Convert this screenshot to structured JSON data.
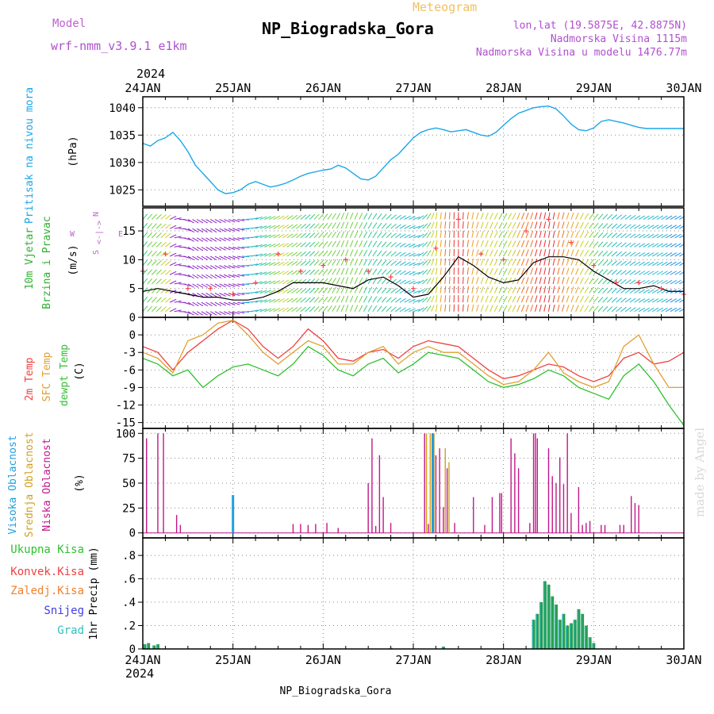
{
  "header": {
    "model_label": "Model",
    "model_value": "wrf-nmm_v3.9.1 e1km",
    "product": "Meteogram",
    "station": "NP_Biogradska_Gora",
    "lonlat": "lon,lat (19.5875E, 42.8875N)",
    "elevation": "Nadmorska Visina 1115m",
    "model_elevation": "Nadmorska Visina u modelu 1476.77m",
    "year": "2024",
    "footer_station": "NP_Biogradska_Gora",
    "credit": "made by Angel"
  },
  "colors": {
    "pressure": "#1aa7e8",
    "temp2m": "#f04040",
    "sfc": "#e0a030",
    "dewpt": "#30c030",
    "low_cloud": "#c0188a",
    "mid_cloud": "#d0a020",
    "high_cloud": "#20a0e0",
    "precip_total": "#2a9a4a",
    "precip_conv": "#f04040",
    "precip_fz": "#f08030",
    "snow": "#4040e0",
    "hail": "#30c0c0",
    "wind_speed": "#000000",
    "gust": "#ff4040"
  },
  "chart_data": [
    {
      "id": "pressure",
      "type": "line",
      "title": "",
      "ylabel": [
        "Pritisak na nivou mora",
        "(hPa)"
      ],
      "x_categories": [
        "24JAN",
        "25JAN",
        "26JAN",
        "27JAN",
        "28JAN",
        "29JAN",
        "30JAN"
      ],
      "xlim_hours": [
        0,
        144
      ],
      "ylim": [
        1022,
        1042
      ],
      "yticks": [
        1025,
        1030,
        1035,
        1040
      ],
      "grid": true,
      "series": [
        {
          "x": [
            0,
            2,
            4,
            6,
            8,
            10,
            12,
            14,
            16,
            18,
            20,
            22,
            24,
            26,
            28,
            30,
            32,
            34,
            36,
            38,
            40,
            42,
            44,
            46,
            48,
            50,
            52,
            54,
            56,
            58,
            60,
            62,
            64,
            66,
            68,
            70,
            72,
            74,
            76,
            78,
            80,
            82,
            84,
            86,
            88,
            90,
            92,
            94,
            96,
            98,
            100,
            102,
            104,
            106,
            108,
            110,
            112,
            114,
            116,
            118,
            120,
            122,
            124,
            126,
            128,
            130,
            132,
            134,
            136,
            138,
            140,
            142,
            144
          ],
          "values": [
            1033.5,
            1033,
            1034,
            1034.5,
            1035.5,
            1034,
            1032,
            1029.5,
            1028,
            1026.5,
            1025,
            1024.3,
            1024.5,
            1025,
            1026,
            1026.5,
            1026,
            1025.5,
            1025.8,
            1026.2,
            1026.8,
            1027.5,
            1028,
            1028.3,
            1028.6,
            1028.8,
            1029.5,
            1029,
            1028,
            1027,
            1026.8,
            1027.5,
            1029,
            1030.5,
            1031.5,
            1033,
            1034.5,
            1035.5,
            1036,
            1036.3,
            1036,
            1035.6,
            1035.8,
            1036,
            1035.5,
            1035,
            1034.8,
            1035.5,
            1036.8,
            1038,
            1039,
            1039.5,
            1040,
            1040.2,
            1040.3,
            1039.8,
            1038.5,
            1037,
            1036,
            1035.8,
            1036.3,
            1037.5,
            1037.8,
            1037.5,
            1037.2,
            1036.8,
            1036.4,
            1036.2,
            1036.2,
            1036.2,
            1036.2,
            1036.2,
            1036.2
          ]
        }
      ]
    },
    {
      "id": "wind",
      "type": "line",
      "title": "",
      "ylabel": [
        "10m Vjetar",
        "Brzina i Pravac",
        "(m/s)"
      ],
      "direction_key": [
        "W",
        "<-|->",
        "E",
        "N",
        "S"
      ],
      "xlim_hours": [
        0,
        144
      ],
      "ylim": [
        0,
        19
      ],
      "yticks": [
        0,
        5,
        10,
        15
      ],
      "grid": true,
      "series": [
        {
          "name": "wind_speed",
          "x": [
            0,
            4,
            8,
            12,
            16,
            20,
            24,
            28,
            32,
            36,
            40,
            44,
            48,
            52,
            56,
            60,
            64,
            68,
            72,
            76,
            80,
            84,
            88,
            92,
            96,
            100,
            104,
            108,
            112,
            116,
            120,
            124,
            128,
            132,
            136,
            140,
            144
          ],
          "values": [
            4.5,
            5,
            4.5,
            4,
            3.5,
            3.5,
            3,
            3,
            3.5,
            4.5,
            6,
            6,
            6,
            5.5,
            5,
            6.5,
            7,
            5.5,
            3.5,
            4,
            7,
            10.5,
            9,
            7,
            6,
            6.5,
            9.5,
            10.5,
            10.5,
            10,
            8,
            6.5,
            5,
            5,
            5.5,
            4.5,
            4.5
          ]
        },
        {
          "name": "gust",
          "x": [
            0,
            6,
            12,
            18,
            24,
            30,
            36,
            42,
            48,
            54,
            60,
            66,
            72,
            78,
            84,
            90,
            96,
            102,
            108,
            114,
            120,
            126,
            132,
            138,
            144
          ],
          "values": [
            8,
            11,
            5,
            5,
            4,
            6,
            11,
            8,
            9,
            10,
            8,
            7,
            5,
            12,
            17,
            11,
            10,
            15,
            17,
            13,
            9,
            6,
            6,
            5,
            4
          ]
        },
        {
          "name": "direction_deg",
          "x": [
            0,
            6,
            12,
            18,
            24,
            30,
            36,
            42,
            48,
            54,
            60,
            66,
            72,
            78,
            84,
            90,
            96,
            102,
            108,
            114,
            120,
            126,
            132,
            138,
            144
          ],
          "values": [
            220,
            230,
            300,
            300,
            290,
            250,
            240,
            230,
            220,
            200,
            210,
            230,
            250,
            190,
            180,
            200,
            210,
            200,
            190,
            200,
            220,
            230,
            240,
            240,
            240
          ]
        }
      ]
    },
    {
      "id": "temperature",
      "type": "line",
      "title": "",
      "ylabel": [
        "2m Temp",
        "SFC Temp",
        "dewpt Temp",
        "(C)"
      ],
      "xlim_hours": [
        0,
        144
      ],
      "ylim": [
        -16,
        3
      ],
      "yticks": [
        0,
        -3,
        -6,
        -9,
        -12,
        -15
      ],
      "grid": true,
      "series": [
        {
          "name": "2m Temp",
          "x": [
            0,
            4,
            8,
            12,
            16,
            20,
            24,
            28,
            32,
            36,
            40,
            44,
            48,
            52,
            56,
            60,
            64,
            68,
            72,
            76,
            80,
            84,
            88,
            92,
            96,
            100,
            104,
            108,
            112,
            116,
            120,
            124,
            128,
            132,
            136,
            140,
            144
          ],
          "values": [
            -2,
            -3,
            -6,
            -3,
            -1,
            1,
            2.5,
            1,
            -2,
            -4,
            -2,
            1,
            -1,
            -4,
            -4.5,
            -3,
            -2.5,
            -4,
            -2,
            -1,
            -1.5,
            -2,
            -4,
            -6,
            -7.5,
            -7,
            -6,
            -5,
            -5.5,
            -7,
            -8,
            -7,
            -4,
            -3,
            -5,
            -4.5,
            -3
          ]
        },
        {
          "name": "SFC Temp",
          "x": [
            0,
            4,
            8,
            12,
            16,
            20,
            24,
            28,
            32,
            36,
            40,
            44,
            48,
            52,
            56,
            60,
            64,
            68,
            72,
            76,
            80,
            84,
            88,
            92,
            96,
            100,
            104,
            108,
            112,
            116,
            120,
            124,
            128,
            132,
            136,
            140,
            144
          ],
          "values": [
            -3,
            -4,
            -6.5,
            -1,
            0,
            2,
            2.5,
            0,
            -3,
            -5,
            -3,
            -1,
            -2,
            -5,
            -5,
            -3,
            -2,
            -5,
            -3,
            -2,
            -3,
            -3,
            -5,
            -7,
            -8.5,
            -8,
            -6,
            -3,
            -6.5,
            -8,
            -9,
            -8,
            -2,
            0,
            -5,
            -9,
            -9
          ]
        },
        {
          "name": "dewpt Temp",
          "x": [
            0,
            4,
            8,
            12,
            16,
            20,
            24,
            28,
            32,
            36,
            40,
            44,
            48,
            52,
            56,
            60,
            64,
            68,
            72,
            76,
            80,
            84,
            88,
            92,
            96,
            100,
            104,
            108,
            112,
            116,
            120,
            124,
            128,
            132,
            136,
            140,
            144
          ],
          "values": [
            -4,
            -5,
            -7,
            -6,
            -9,
            -7,
            -5.5,
            -5,
            -6,
            -7,
            -5,
            -2,
            -3.5,
            -6,
            -7,
            -5,
            -4,
            -6.5,
            -5,
            -3,
            -3.5,
            -4,
            -6,
            -8,
            -9,
            -8.5,
            -7.5,
            -6,
            -7,
            -9,
            -10,
            -11,
            -7,
            -5,
            -8,
            -12,
            -15.5
          ]
        }
      ]
    },
    {
      "id": "clouds",
      "type": "bar",
      "title": "",
      "ylabel": [
        "Visoka Oblacnost",
        "Srednja Oblacnost",
        "Niska Oblacnost",
        "(%)"
      ],
      "xlim_hours": [
        0,
        144
      ],
      "ylim": [
        -5,
        105
      ],
      "yticks": [
        0,
        25,
        50,
        75,
        100
      ],
      "grid": true,
      "series": [
        {
          "name": "Niska Oblacnost",
          "x": [
            1,
            4,
            5.5,
            9,
            10,
            40,
            42,
            44,
            46,
            49,
            52,
            60,
            61,
            62,
            63,
            64,
            66,
            75,
            76,
            77,
            78,
            79,
            80,
            81,
            83,
            88,
            91,
            93,
            95,
            95.5,
            98,
            99,
            100,
            103,
            104,
            104.5,
            105,
            108,
            109,
            110,
            111,
            112,
            113,
            114,
            116,
            117,
            118,
            119,
            122,
            123,
            127,
            128,
            130,
            131,
            132
          ],
          "values": [
            95,
            100,
            100,
            18,
            8,
            9,
            9,
            8,
            9,
            10,
            5,
            50,
            95,
            7,
            78,
            36,
            10,
            100,
            9,
            100,
            78,
            85,
            26,
            65,
            10,
            36,
            8,
            36,
            40,
            40,
            95,
            80,
            65,
            10,
            100,
            100,
            95,
            85,
            57,
            50,
            76,
            49,
            100,
            20,
            46,
            8,
            10,
            12,
            8,
            8,
            8,
            8,
            37,
            30,
            28
          ]
        },
        {
          "name": "Srednja Oblacnost",
          "x": [
            75.5,
            76.5,
            77.5,
            80.5,
            81.5
          ],
          "values": [
            100,
            100,
            100,
            85,
            71
          ]
        },
        {
          "name": "Visoka Oblacnost",
          "x": [
            24,
            77.2
          ],
          "values": [
            38,
            100
          ]
        }
      ]
    },
    {
      "id": "precip",
      "type": "bar",
      "title": "",
      "ylabel": [
        "Ukupna Kisa",
        "Konvek.Kisa",
        "Zaledj.Kisa",
        "Snijeg",
        "Grad",
        "1hr Precip (mm)"
      ],
      "xlim_hours": [
        0,
        144
      ],
      "ylim": [
        0,
        0.95
      ],
      "yticks": [
        0,
        0.2,
        0.4,
        0.6,
        0.8
      ],
      "grid": true,
      "series": [
        {
          "name": "Ukupna Kisa",
          "x": [
            0.5,
            1.5,
            3,
            4,
            66,
            80,
            104,
            105,
            106,
            107,
            108,
            109,
            110,
            111,
            112,
            113,
            114,
            115,
            116,
            117,
            118,
            119,
            120
          ],
          "values": [
            0.04,
            0.05,
            0.03,
            0.04,
            0.01,
            0.02,
            0.25,
            0.3,
            0.4,
            0.58,
            0.55,
            0.45,
            0.38,
            0.25,
            0.3,
            0.2,
            0.22,
            0.25,
            0.34,
            0.3,
            0.2,
            0.1,
            0.05
          ]
        }
      ]
    }
  ]
}
